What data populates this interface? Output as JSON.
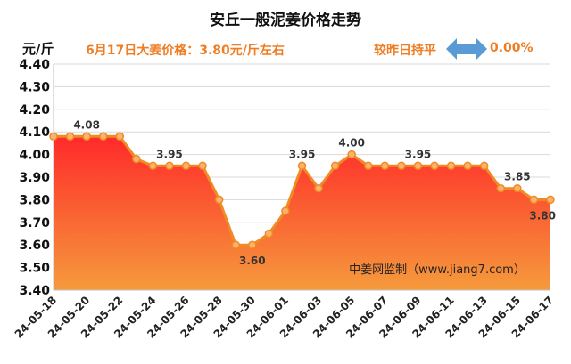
{
  "header": {
    "title": "安丘一般泥姜价格走势",
    "unit": "元/斤",
    "price_text": "6月17日大姜价格：3.80元/斤左右",
    "compare_text": "较昨日持平",
    "change_pct": "0.00%",
    "arrow_icon": "double-arrow-icon",
    "arrow_color": "#5b9bd5"
  },
  "colors": {
    "line": "#f08a24",
    "fill_top": "#ff2a2a",
    "fill_bottom": "#f59a3c",
    "label": "#333333"
  },
  "chart_data": {
    "type": "area",
    "title": "安丘一般泥姜价格走势",
    "ylabel": "元/斤",
    "xlabel": "",
    "ylim": [
      3.4,
      4.4
    ],
    "y_ticks": [
      "3.40",
      "3.50",
      "3.60",
      "3.70",
      "3.80",
      "3.90",
      "4.00",
      "4.10",
      "4.20",
      "4.30",
      "4.40"
    ],
    "x": [
      "24-05-18",
      "24-05-19",
      "24-05-20",
      "24-05-21",
      "24-05-22",
      "24-05-23",
      "24-05-24",
      "24-05-25",
      "24-05-26",
      "24-05-27",
      "24-05-28",
      "24-05-29",
      "24-05-30",
      "24-05-31",
      "24-06-01",
      "24-06-02",
      "24-06-03",
      "24-06-04",
      "24-06-05",
      "24-06-06",
      "24-06-07",
      "24-06-08",
      "24-06-09",
      "24-06-10",
      "24-06-11",
      "24-06-12",
      "24-06-13",
      "24-06-14",
      "24-06-15",
      "24-06-16",
      "24-06-17"
    ],
    "x_tick_labels": [
      "24-05-18",
      "24-05-20",
      "24-05-22",
      "24-05-24",
      "24-05-26",
      "24-05-28",
      "24-05-30",
      "24-06-01",
      "24-06-03",
      "24-06-05",
      "24-06-07",
      "24-06-09",
      "24-06-11",
      "24-06-13",
      "24-06-15",
      "24-06-17"
    ],
    "values": [
      4.08,
      4.08,
      4.08,
      4.08,
      4.08,
      3.98,
      3.95,
      3.95,
      3.95,
      3.95,
      3.8,
      3.6,
      3.6,
      3.65,
      3.75,
      3.95,
      3.85,
      3.95,
      4.0,
      3.95,
      3.95,
      3.95,
      3.95,
      3.95,
      3.95,
      3.95,
      3.95,
      3.85,
      3.85,
      3.8,
      3.8
    ],
    "data_labels": [
      {
        "date": "24-05-20",
        "text": "4.08"
      },
      {
        "date": "24-05-25",
        "text": "3.95"
      },
      {
        "date": "24-05-30",
        "text": "3.60"
      },
      {
        "date": "24-06-02",
        "text": "3.95"
      },
      {
        "date": "24-06-05",
        "text": "4.00"
      },
      {
        "date": "24-06-09",
        "text": "3.95"
      },
      {
        "date": "24-06-15",
        "text": "3.85"
      },
      {
        "date": "24-06-17",
        "text": "3.80"
      }
    ],
    "watermark": "中姜网监制（www.jiang7.com）",
    "grid": true,
    "legend": "none"
  }
}
